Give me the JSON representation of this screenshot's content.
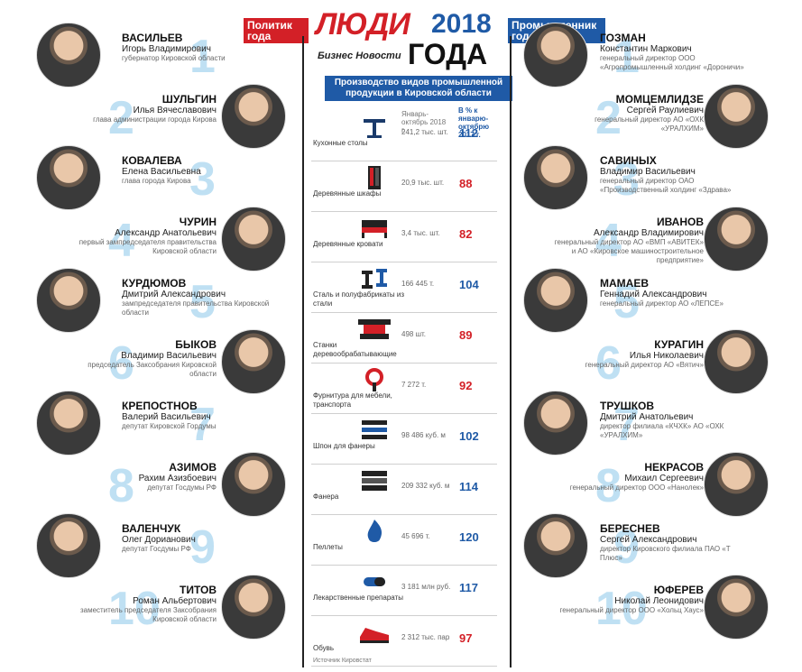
{
  "header": {
    "politician_tag": "Политик года",
    "industrialist_tag": "Промышленник года",
    "logo_lyudi": "ЛЮДИ",
    "logo_year": "2018",
    "logo_bn": "Бизнес Новости",
    "logo_goda": "ГОДА",
    "banner": "Производство видов промышленной продукции в Кировской области"
  },
  "colors": {
    "accent_red": "#d32027",
    "accent_blue": "#1f5aa6",
    "number_light": "#bfe0f3"
  },
  "table": {
    "col_volume": "Январь-октябрь 2018 г.",
    "col_pct": "В % к январю-октябрю 2017 г.",
    "source": "Источник Кировстат",
    "rows": [
      {
        "product": "Кухонные столы",
        "volume": "241,2 тыс. шт.",
        "pct": "112",
        "icon": "kitchen-table-icon"
      },
      {
        "product": "Деревянные шкафы",
        "volume": "20,9 тыс. шт.",
        "pct": "88",
        "icon": "wardrobe-icon"
      },
      {
        "product": "Деревянные кровати",
        "volume": "3,4 тыс. шт.",
        "pct": "82",
        "icon": "bed-icon"
      },
      {
        "product": "Сталь и полуфабрикаты из стали",
        "volume": "166 445 т.",
        "pct": "104",
        "icon": "steel-beam-icon"
      },
      {
        "product": "Станки деревообрабатывающие",
        "volume": "498 шт.",
        "pct": "89",
        "icon": "machine-icon"
      },
      {
        "product": "Фурнитура для мебели, транспорта",
        "volume": "7 272 т.",
        "pct": "92",
        "icon": "wrench-icon"
      },
      {
        "product": "Шпон для фанеры",
        "volume": "98 486 куб. м",
        "pct": "102",
        "icon": "veneer-icon"
      },
      {
        "product": "Фанера",
        "volume": "209 332 куб. м",
        "pct": "114",
        "icon": "plywood-icon"
      },
      {
        "product": "Пеллеты",
        "volume": "45 696 т.",
        "pct": "120",
        "icon": "flame-icon"
      },
      {
        "product": "Лекарственные препараты",
        "volume": "3 181 млн руб.",
        "pct": "117",
        "icon": "pill-icon"
      },
      {
        "product": "Обувь",
        "volume": "2 312 тыс. пар",
        "pct": "97",
        "icon": "shoe-icon"
      }
    ]
  },
  "politicians": [
    {
      "rank": "1",
      "surname": "ВАСИЛЬЕВ",
      "name": "Игорь Владимирович",
      "role": "губернатор Кировской области"
    },
    {
      "rank": "2",
      "surname": "ШУЛЬГИН",
      "name": "Илья Вячеславович",
      "role": "глава администрации города Кирова"
    },
    {
      "rank": "3",
      "surname": "КОВАЛЕВА",
      "name": "Елена Васильевна",
      "role": "глава города Кирова"
    },
    {
      "rank": "4",
      "surname": "ЧУРИН",
      "name": "Александр Анатольевич",
      "role": "первый зампредседателя правительства Кировской области"
    },
    {
      "rank": "5",
      "surname": "КУРДЮМОВ",
      "name": "Дмитрий Александрович",
      "role": "зампредседателя правительства Кировской области"
    },
    {
      "rank": "6",
      "surname": "БЫКОВ",
      "name": "Владимир Васильевич",
      "role": "председатель Заксобрания Кировской области"
    },
    {
      "rank": "7",
      "surname": "КРЕПОСТНОВ",
      "name": "Валерий Васильевич",
      "role": "депутат Кировской Гордумы"
    },
    {
      "rank": "8",
      "surname": "АЗИМОВ",
      "name": "Рахим Азизбоевич",
      "role": "депутат Госдумы РФ"
    },
    {
      "rank": "9",
      "surname": "ВАЛЕНЧУК",
      "name": "Олег Дорианович",
      "role": "депутат Госдумы РФ"
    },
    {
      "rank": "10",
      "surname": "ТИТОВ",
      "name": "Роман Альбертович",
      "role": "заместитель председателя Заксобрания Кировской области"
    }
  ],
  "industrialists": [
    {
      "rank": "1",
      "surname": "ГОЗМАН",
      "name": "Константин Маркович",
      "role": "генеральный директор ООО «Агропромышленный холдинг «Дороничи»"
    },
    {
      "rank": "2",
      "surname": "МОМЦЕМЛИДЗЕ",
      "name": "Сергей Раулиевич",
      "role": "генеральный директор АО «ОХК «УРАЛХИМ»"
    },
    {
      "rank": "3",
      "surname": "САВИНЫХ",
      "name": "Владимир Васильевич",
      "role": "генеральный директор ОАО «Производственный холдинг «Здрава»"
    },
    {
      "rank": "4",
      "surname": "ИВАНОВ",
      "name": "Александр Владимирович",
      "role": "генеральный директор АО «ВМП «АВИТЕК» и АО «Кировское машиностроительное предприятие»"
    },
    {
      "rank": "5",
      "surname": "МАМАЕВ",
      "name": "Геннадий Александрович",
      "role": "генеральный директор АО «ЛЕПСЕ»"
    },
    {
      "rank": "6",
      "surname": "КУРАГИН",
      "name": "Илья Николаевич",
      "role": "генеральный директор АО «Вятич»"
    },
    {
      "rank": "7",
      "surname": "ТРУШКОВ",
      "name": "Дмитрий Анатольевич",
      "role": "директор филиала «КЧХК» АО «ОХК «УРАЛХИМ»"
    },
    {
      "rank": "8",
      "surname": "НЕКРАСОВ",
      "name": "Михаил Сергеевич",
      "role": "генеральный директор ООО «Нанолек»"
    },
    {
      "rank": "9",
      "surname": "БЕРЕСНЕВ",
      "name": "Сергей Александрович",
      "role": "директор Кировского филиала ПАО «Т Плюс»"
    },
    {
      "rank": "10",
      "surname": "ЮФЕРЕВ",
      "name": "Николай Леонидович",
      "role": "генеральный директор ООО «Хольц Хаус»"
    }
  ]
}
